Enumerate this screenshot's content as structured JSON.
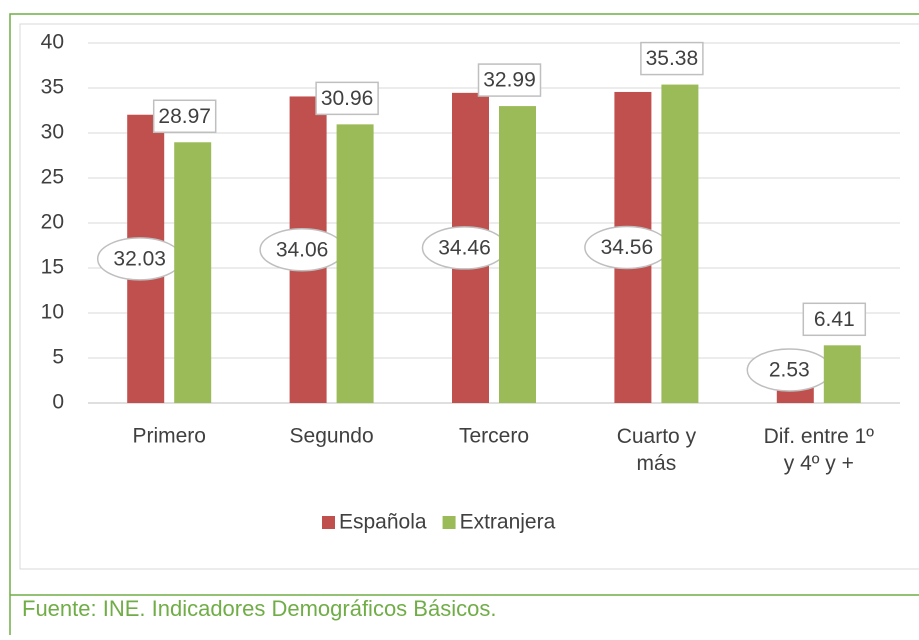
{
  "chart_data": {
    "type": "bar",
    "categories": [
      "Primero",
      "Segundo",
      "Tercero",
      "Cuarto y\nmás",
      "Dif. entre 1º\ny 4º y +"
    ],
    "series": [
      {
        "name": "Española",
        "color": "#c0504d",
        "values": [
          32.03,
          34.06,
          34.46,
          34.56,
          2.53
        ]
      },
      {
        "name": "Extranjera",
        "color": "#9bbb59",
        "values": [
          28.97,
          30.96,
          32.99,
          35.38,
          6.41
        ]
      }
    ],
    "ylim": [
      0,
      40
    ],
    "yticks": [
      0,
      5,
      10,
      15,
      20,
      25,
      30,
      35,
      40
    ],
    "grid": true,
    "legend": "bottom",
    "source": "Fuente: INE. Indicadores Demográficos Básicos."
  }
}
